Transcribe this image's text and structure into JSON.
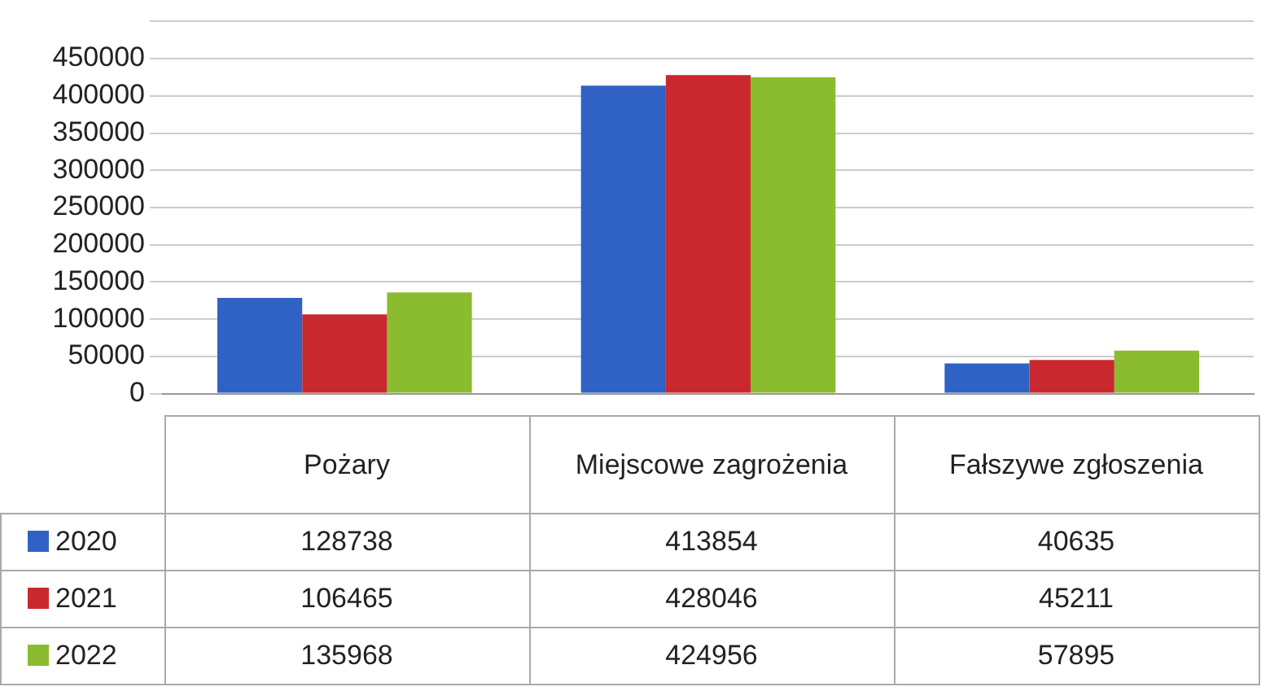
{
  "chart_data": {
    "type": "bar",
    "categories": [
      "Pożary",
      "Miejscowe zagrożenia",
      "Fałszywe zgłoszenia"
    ],
    "series": [
      {
        "name": "2020",
        "color": "#2f62c4",
        "values": [
          128738,
          413854,
          40635
        ]
      },
      {
        "name": "2021",
        "color": "#c9292e",
        "values": [
          106465,
          428046,
          45211
        ]
      },
      {
        "name": "2022",
        "color": "#8bbb2f",
        "values": [
          135968,
          424956,
          57895
        ]
      }
    ],
    "ylim": [
      0,
      500000
    ],
    "yticks": [
      0,
      50000,
      100000,
      150000,
      200000,
      250000,
      300000,
      350000,
      400000,
      450000,
      {
        "value": 500000,
        "label": null
      }
    ],
    "grid": "y",
    "legend": "bottom",
    "data_labels": true
  }
}
